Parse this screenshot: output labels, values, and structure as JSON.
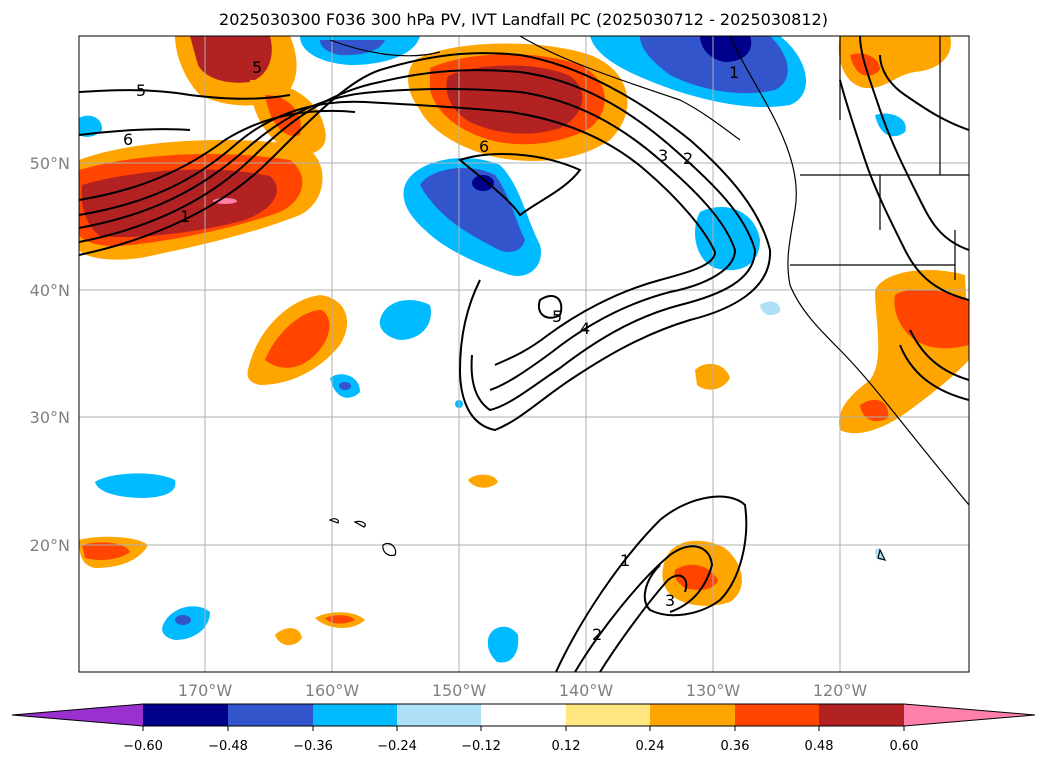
{
  "title": "2025030300 F036 300 hPa PV, IVT Landfall PC (2025030712 - 2025030812)",
  "map": {
    "lat_labels": [
      "50°N",
      "40°N",
      "30°N",
      "20°N"
    ],
    "lon_labels": [
      "170°W",
      "160°W",
      "150°W",
      "140°W",
      "130°W",
      "120°W"
    ],
    "contour_labels": [
      "5",
      "6",
      "1",
      "5",
      "6",
      "3",
      "2",
      "1",
      "4",
      "5",
      "1",
      "3",
      "2"
    ]
  },
  "colorbar": {
    "ticks": [
      "−0.60",
      "−0.48",
      "−0.36",
      "−0.24",
      "−0.12",
      "0.12",
      "0.24",
      "0.36",
      "0.48",
      "0.60"
    ],
    "colors": [
      "#9b30d0",
      "#00008b",
      "#3355cc",
      "#00bbff",
      "#aee0f8",
      "#ffffff",
      "#ffe680",
      "#ffa500",
      "#ff4500",
      "#b22222",
      "#ff80aa"
    ]
  },
  "colors": {
    "neg_strong": "#00008b",
    "neg_med": "#3355cc",
    "neg": "#00bbff",
    "neg_weak": "#aee0f8",
    "pos_weak": "#ffe680",
    "pos": "#ffa500",
    "pos_med": "#ff4500",
    "pos_strong": "#b22222",
    "pos_max": "#ff80aa"
  }
}
